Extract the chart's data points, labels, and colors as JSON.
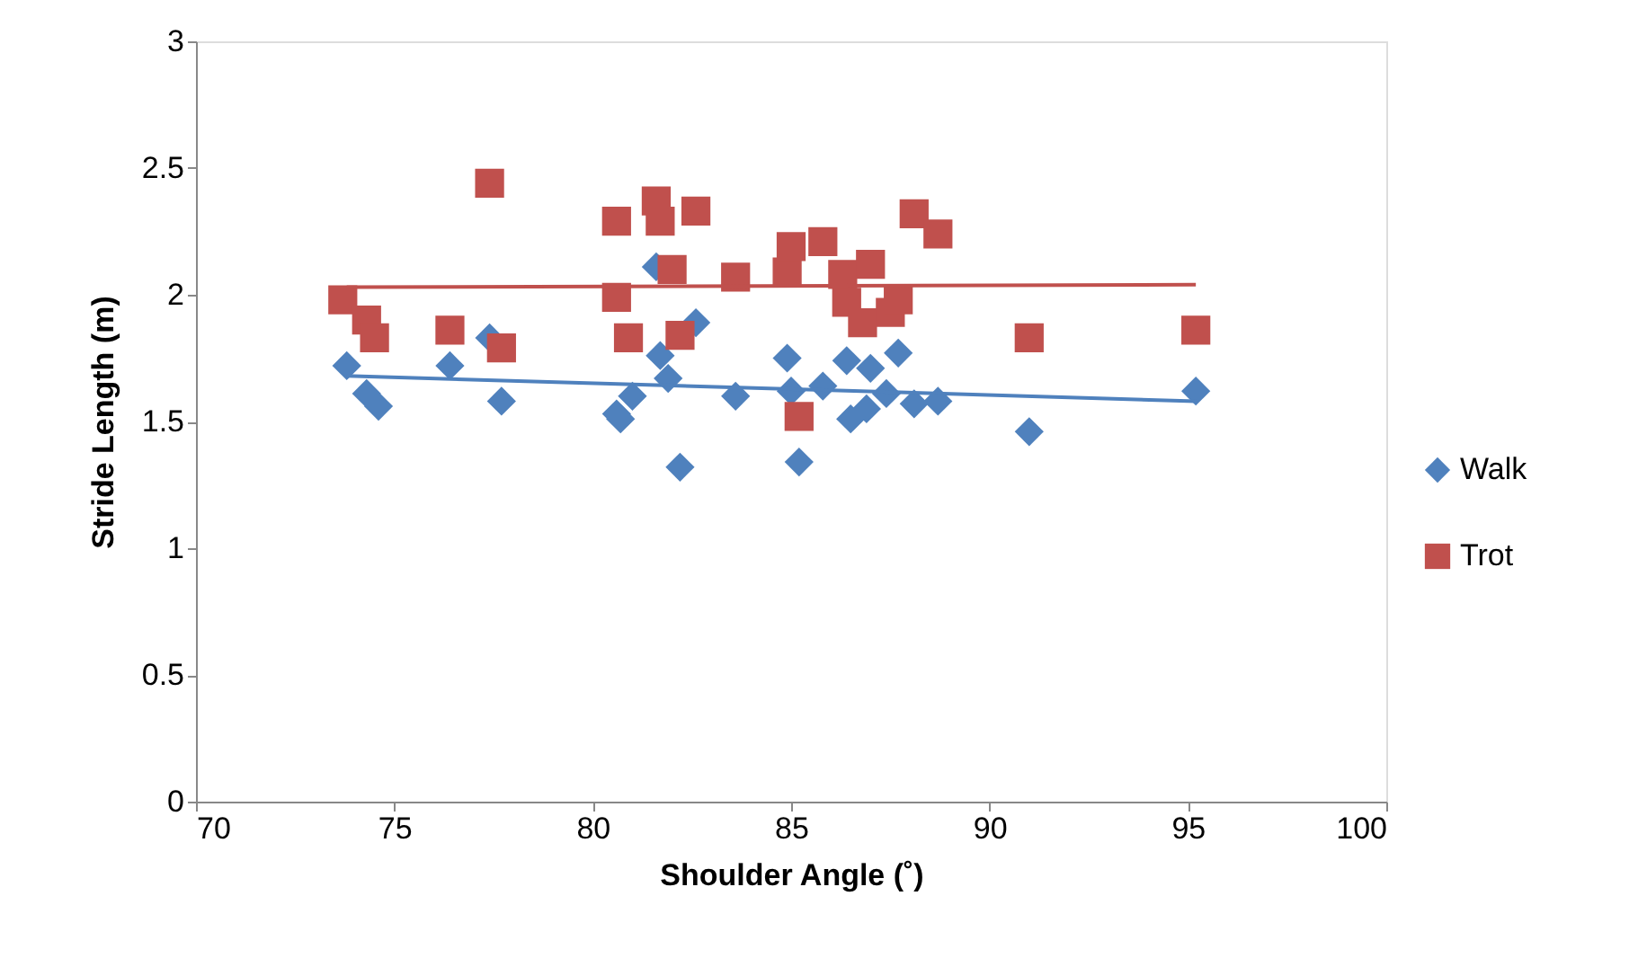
{
  "chart_data": {
    "type": "scatter",
    "xlabel": "Shoulder Angle (˚)",
    "ylabel": "Stride Length (m)",
    "xlim": [
      70,
      100
    ],
    "xticks": [
      70,
      75,
      80,
      85,
      90,
      95,
      100
    ],
    "ylim": [
      0,
      3
    ],
    "yticks": [
      0,
      0.5,
      1,
      1.5,
      2,
      2.5,
      3
    ],
    "grid": false,
    "legend": "right",
    "series": [
      {
        "name": "Walk",
        "color": "#4f81bd",
        "marker": "diamond",
        "x": [
          73.8,
          74.3,
          74.6,
          76.4,
          77.4,
          77.7,
          80.6,
          80.7,
          81.0,
          81.6,
          81.7,
          81.9,
          82.2,
          82.6,
          83.6,
          84.9,
          85.0,
          85.2,
          85.8,
          86.4,
          86.5,
          86.9,
          87.0,
          87.4,
          87.7,
          88.1,
          88.7,
          91.0,
          95.2
        ],
        "values": [
          1.72,
          1.61,
          1.56,
          1.72,
          1.83,
          1.58,
          1.53,
          1.51,
          1.6,
          2.11,
          1.76,
          1.67,
          1.32,
          1.89,
          1.6,
          1.75,
          1.62,
          1.34,
          1.64,
          1.74,
          1.51,
          1.55,
          1.71,
          1.61,
          1.77,
          1.57,
          1.58,
          1.46,
          1.62
        ]
      },
      {
        "name": "Trot",
        "color": "#c0504d",
        "marker": "square",
        "x": [
          73.7,
          74.3,
          74.5,
          76.4,
          77.4,
          77.7,
          80.6,
          80.6,
          80.9,
          81.6,
          81.7,
          82.0,
          82.2,
          82.6,
          83.6,
          84.9,
          85.0,
          85.2,
          85.8,
          86.3,
          86.4,
          86.8,
          87.0,
          87.5,
          87.7,
          88.1,
          88.7,
          91.0,
          95.2
        ],
        "values": [
          1.98,
          1.9,
          1.83,
          1.86,
          2.44,
          1.79,
          2.29,
          1.99,
          1.83,
          2.37,
          2.29,
          2.1,
          1.84,
          2.33,
          2.07,
          2.09,
          2.19,
          1.52,
          2.21,
          2.08,
          1.97,
          1.89,
          2.12,
          1.93,
          1.98,
          2.32,
          2.24,
          1.83,
          1.86
        ]
      },
      {
        "type": "line",
        "color": "#4f81bd",
        "line_style": "solid",
        "x": [
          73.8,
          95.2
        ],
        "values": [
          1.68,
          1.58
        ]
      },
      {
        "type": "line",
        "color": "#c0504d",
        "line_style": "solid",
        "x": [
          73.8,
          95.2
        ],
        "values": [
          2.03,
          2.04
        ]
      }
    ]
  }
}
